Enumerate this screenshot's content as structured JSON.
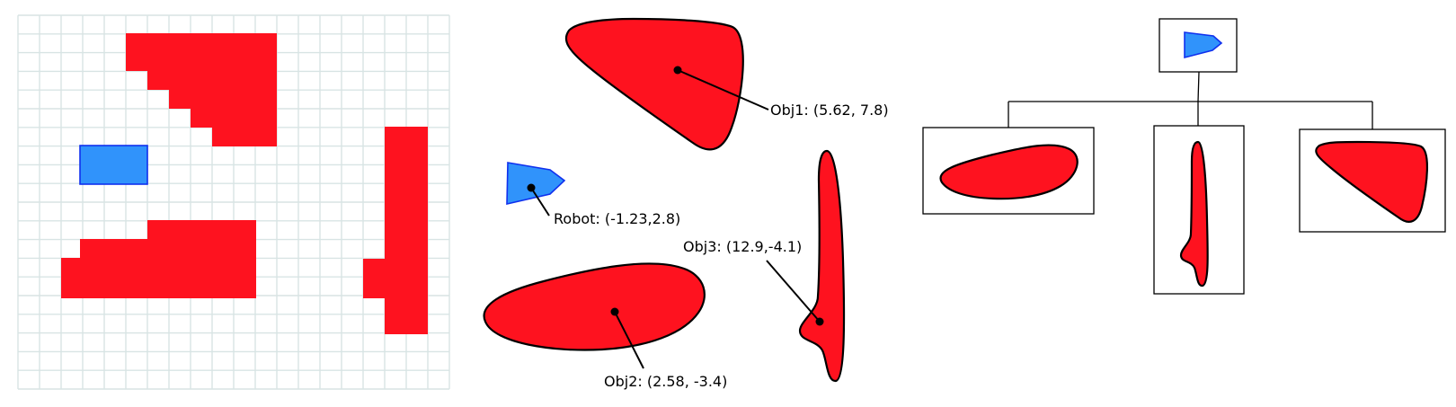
{
  "colors": {
    "obstacle": "#fe121f",
    "robot": "#3093fb",
    "robot_outline": "#1030ee",
    "grid_line": "#d8e4e4",
    "outline": "#000000"
  },
  "labels": {
    "obj1": "Obj1: (5.62, 7.8)",
    "obj2": "Obj2: (2.58, -3.4)",
    "obj3": "Obj3: (12.9,-4.1)",
    "robot": "Robot: (-1.23,2.8)"
  }
}
